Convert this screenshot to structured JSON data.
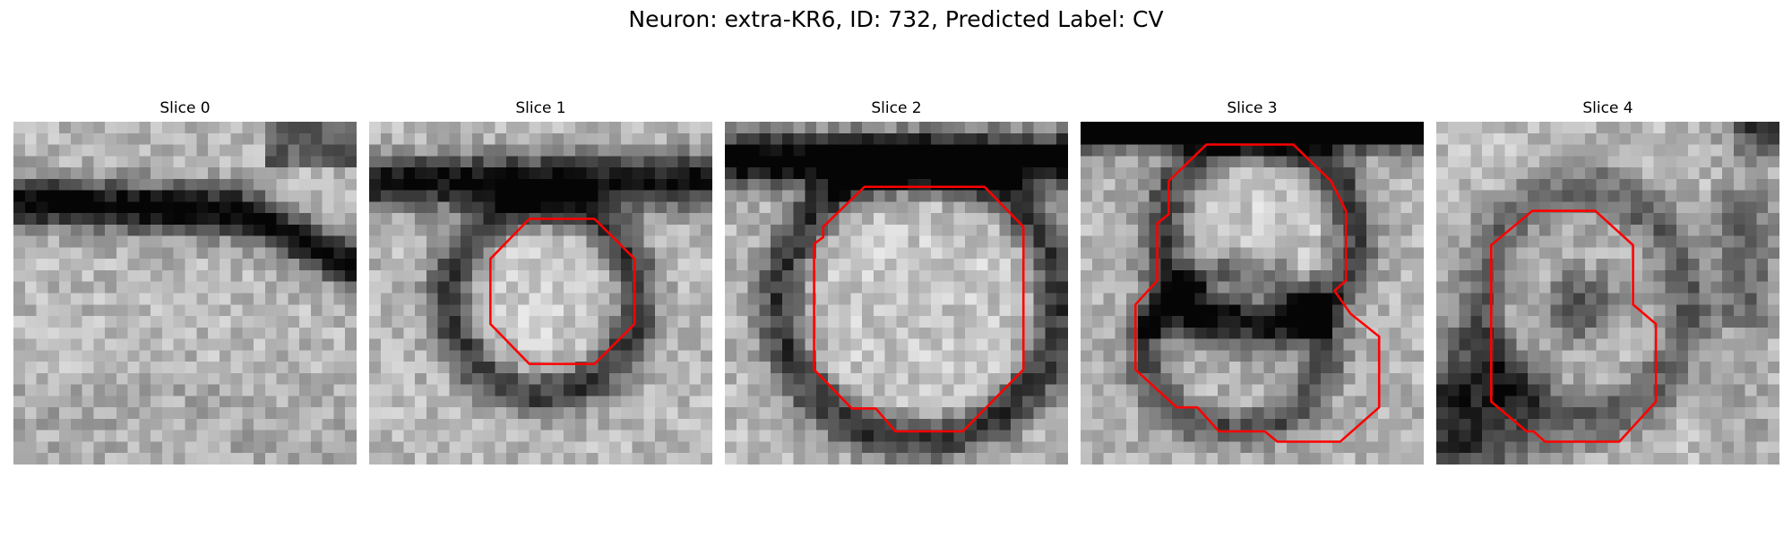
{
  "figure": {
    "title": "Neuron: extra-KR6, ID: 732, Predicted Label: CV",
    "contour_color": "#ff0000"
  },
  "panels": [
    {
      "title": "Slice 0"
    },
    {
      "title": "Slice 1"
    },
    {
      "title": "Slice 2"
    },
    {
      "title": "Slice 3"
    },
    {
      "title": "Slice 4"
    }
  ]
}
